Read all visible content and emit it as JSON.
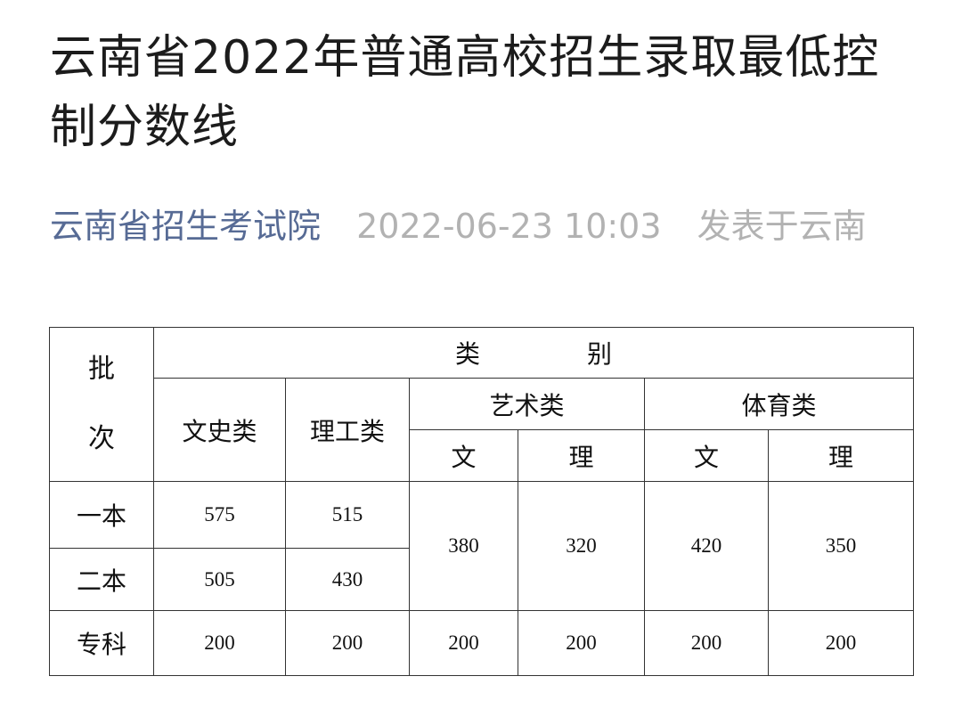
{
  "article": {
    "title": "云南省2022年普通高校招生录取最低控制分数线",
    "account": "云南省招生考试院",
    "date": "2022-06-23 10:03",
    "location": "发表于云南"
  },
  "table": {
    "batch_header_chars": [
      "批",
      "次"
    ],
    "category_header_chars": [
      "类",
      "别"
    ],
    "liberal_arts": "文史类",
    "science": "理工类",
    "arts": "艺术类",
    "sports": "体育类",
    "sub_wen": "文",
    "sub_li": "理",
    "rows": [
      {
        "batch": "一本",
        "wenshi": "575",
        "ligong": "515"
      },
      {
        "batch": "二本",
        "wenshi": "505",
        "ligong": "430"
      },
      {
        "batch": "专科",
        "wenshi": "200",
        "ligong": "200",
        "arts_wen": "200",
        "arts_li": "200",
        "sports_wen": "200",
        "sports_li": "200"
      }
    ],
    "merged_undergrad": {
      "arts_wen": "380",
      "arts_li": "320",
      "sports_wen": "420",
      "sports_li": "350"
    }
  }
}
